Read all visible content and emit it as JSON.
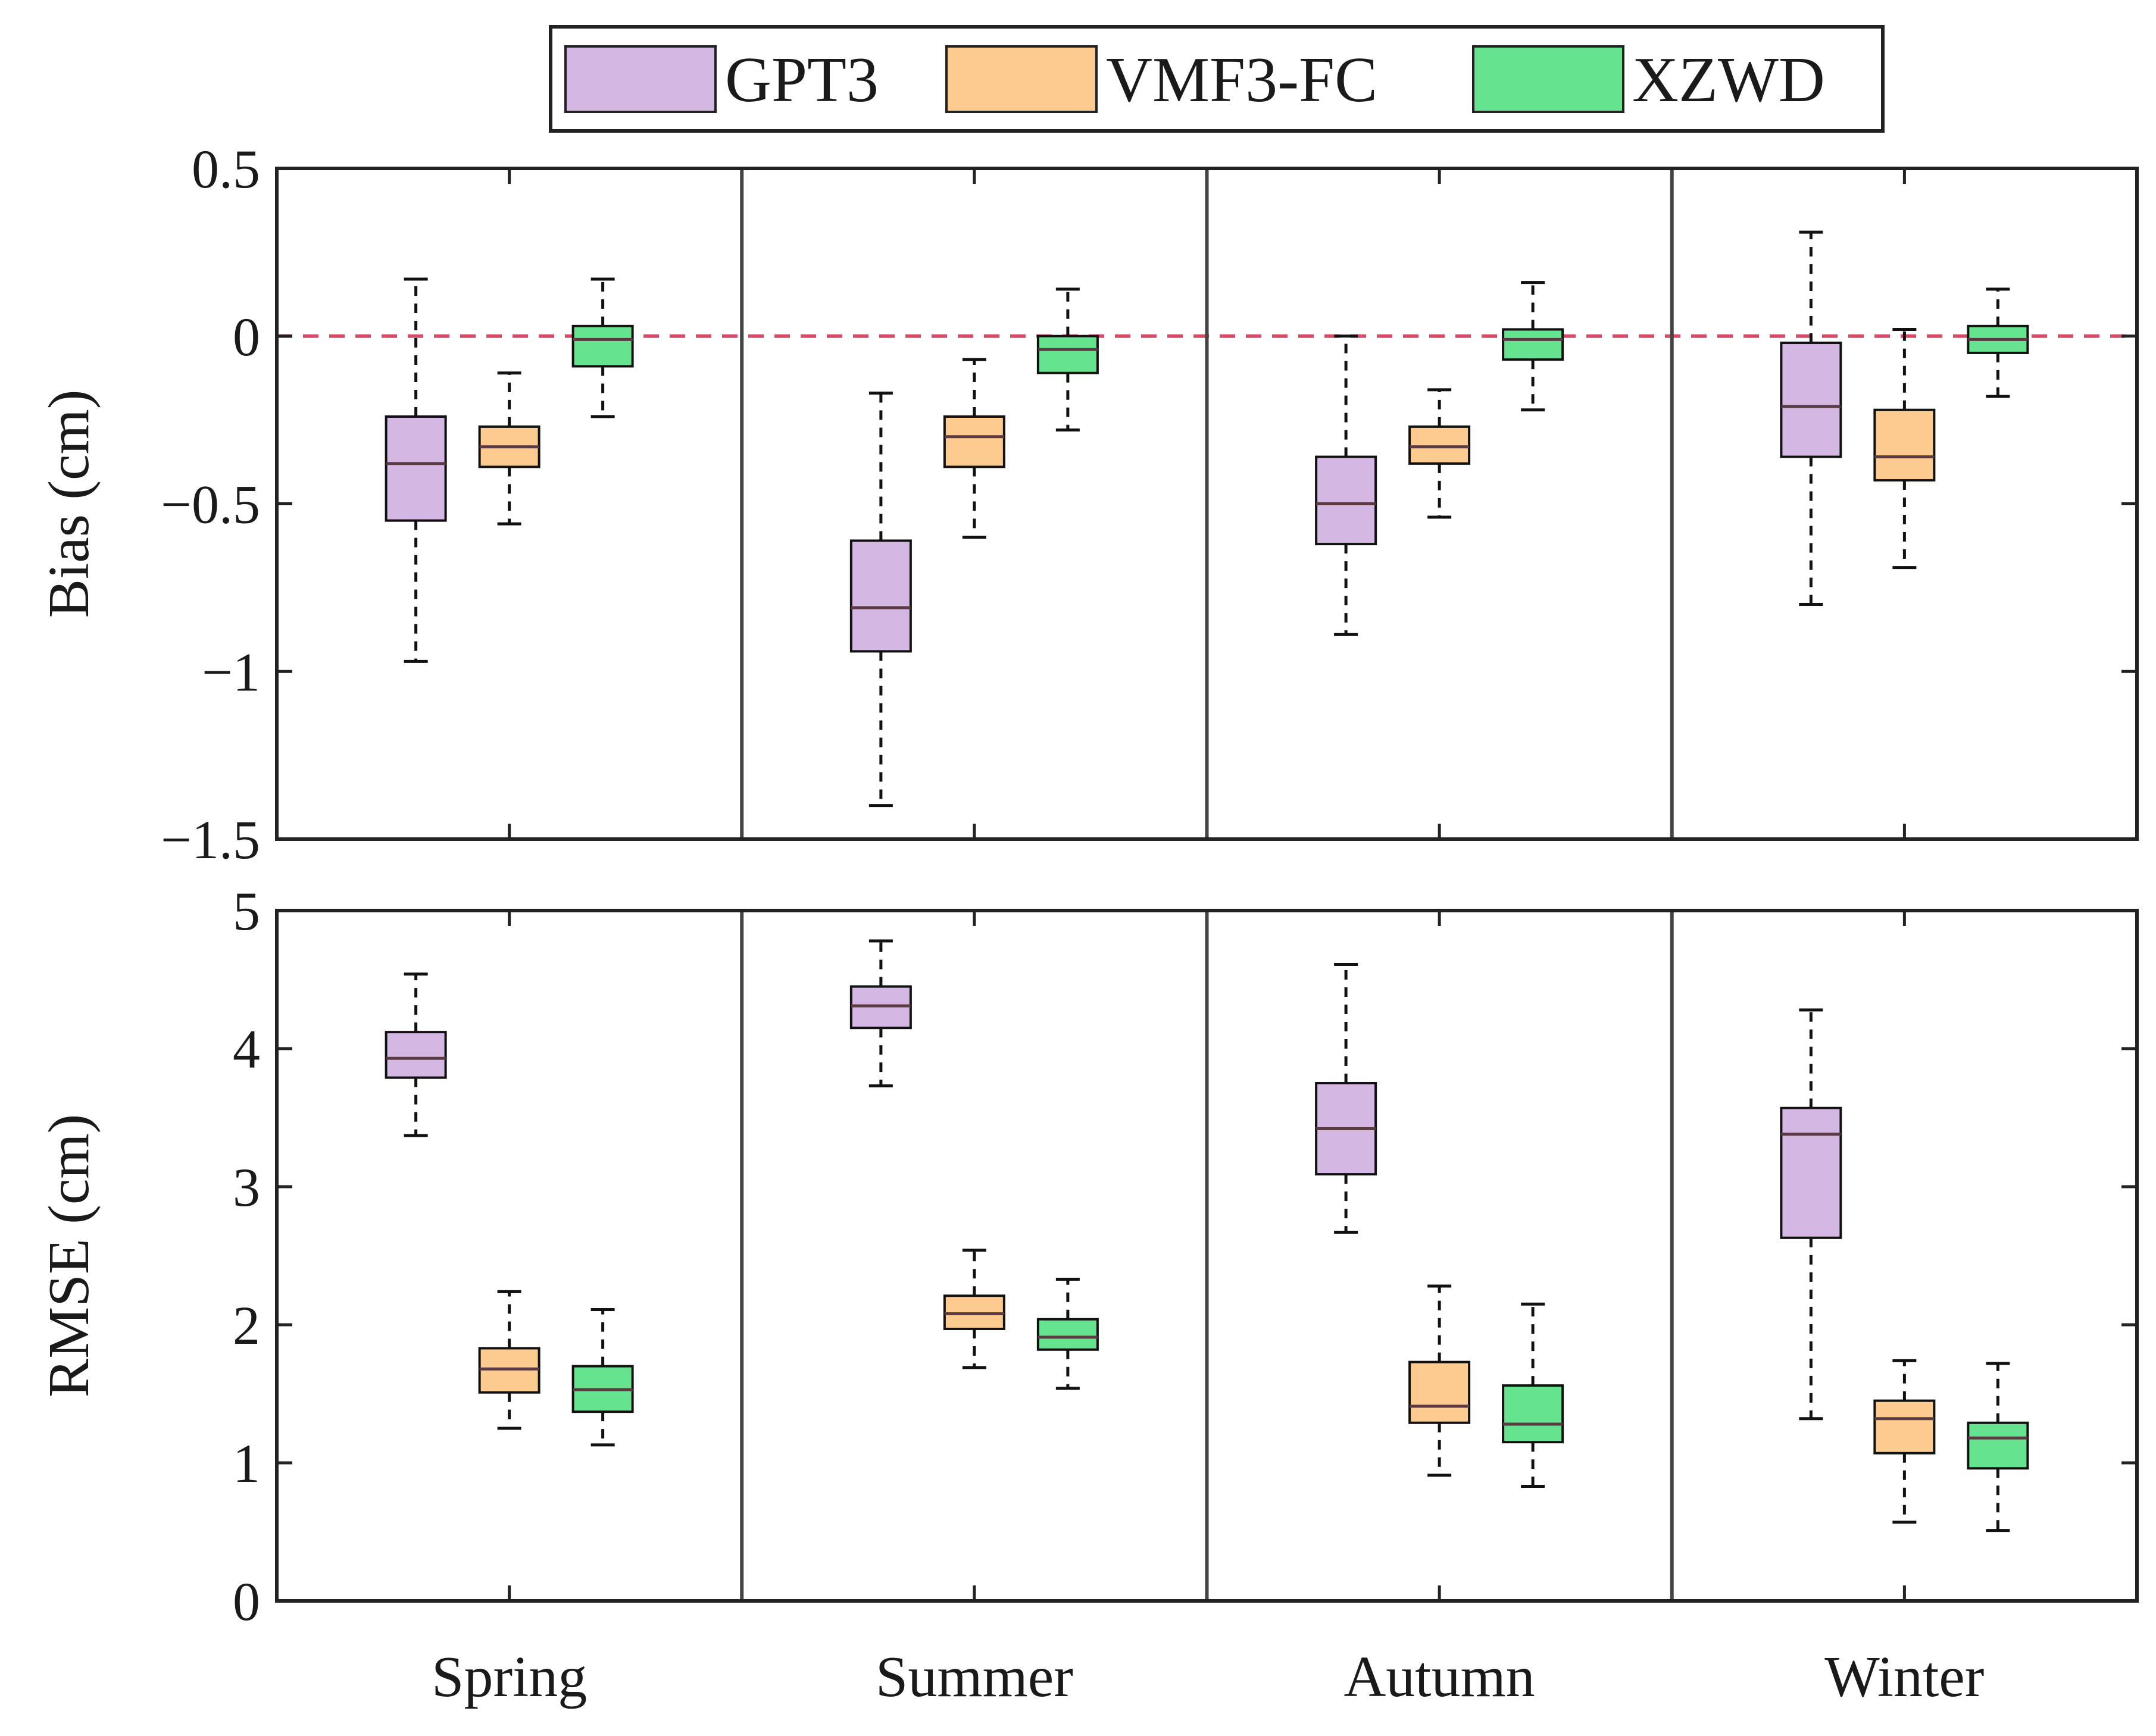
{
  "chart_data": {
    "type": "boxplot",
    "categories": [
      "Spring",
      "Summer",
      "Autumn",
      "Winter"
    ],
    "legend": [
      {
        "name": "GPT3",
        "color": "#d4b8e3"
      },
      {
        "name": "VMF3-FC",
        "color": "#fdcb8f"
      },
      {
        "name": "XZWD",
        "color": "#66e38f"
      }
    ],
    "legend_position": "top",
    "panels": [
      {
        "key": "bias",
        "ylabel": "Bias (cm)",
        "ylim": [
          -1.5,
          0.5
        ],
        "yticks": [
          0.5,
          0,
          -0.5,
          -1,
          -1.5
        ],
        "ytick_labels": [
          "0.5",
          "0",
          "−0.5",
          "−1",
          "−1.5"
        ],
        "reference_line": {
          "y": 0,
          "color": "#d4506a",
          "style": "dashed"
        },
        "series": [
          {
            "name": "GPT3",
            "boxes": [
              {
                "whisker_low": -0.97,
                "q1": -0.55,
                "median": -0.38,
                "q3": -0.24,
                "whisker_high": 0.17
              },
              {
                "whisker_low": -1.4,
                "q1": -0.94,
                "median": -0.81,
                "q3": -0.61,
                "whisker_high": -0.17
              },
              {
                "whisker_low": -0.89,
                "q1": -0.62,
                "median": -0.5,
                "q3": -0.36,
                "whisker_high": 0.0
              },
              {
                "whisker_low": -0.8,
                "q1": -0.36,
                "median": -0.21,
                "q3": -0.02,
                "whisker_high": 0.31
              }
            ]
          },
          {
            "name": "VMF3-FC",
            "boxes": [
              {
                "whisker_low": -0.56,
                "q1": -0.39,
                "median": -0.33,
                "q3": -0.27,
                "whisker_high": -0.11
              },
              {
                "whisker_low": -0.6,
                "q1": -0.39,
                "median": -0.3,
                "q3": -0.24,
                "whisker_high": -0.07
              },
              {
                "whisker_low": -0.54,
                "q1": -0.38,
                "median": -0.33,
                "q3": -0.27,
                "whisker_high": -0.16
              },
              {
                "whisker_low": -0.69,
                "q1": -0.43,
                "median": -0.36,
                "q3": -0.22,
                "whisker_high": 0.02
              }
            ]
          },
          {
            "name": "XZWD",
            "boxes": [
              {
                "whisker_low": -0.24,
                "q1": -0.09,
                "median": -0.01,
                "q3": 0.03,
                "whisker_high": 0.17
              },
              {
                "whisker_low": -0.28,
                "q1": -0.11,
                "median": -0.04,
                "q3": 0.0,
                "whisker_high": 0.14
              },
              {
                "whisker_low": -0.22,
                "q1": -0.07,
                "median": -0.01,
                "q3": 0.02,
                "whisker_high": 0.16
              },
              {
                "whisker_low": -0.18,
                "q1": -0.05,
                "median": -0.01,
                "q3": 0.03,
                "whisker_high": 0.14
              }
            ]
          }
        ]
      },
      {
        "key": "rmse",
        "ylabel": "RMSE (cm)",
        "ylim": [
          0,
          5
        ],
        "yticks": [
          5,
          4,
          3,
          2,
          1,
          0
        ],
        "ytick_labels": [
          "5",
          "4",
          "3",
          "2",
          "1",
          "0"
        ],
        "series": [
          {
            "name": "GPT3",
            "boxes": [
              {
                "whisker_low": 3.37,
                "q1": 3.79,
                "median": 3.93,
                "q3": 4.12,
                "whisker_high": 4.54
              },
              {
                "whisker_low": 3.73,
                "q1": 4.15,
                "median": 4.31,
                "q3": 4.45,
                "whisker_high": 4.78
              },
              {
                "whisker_low": 2.67,
                "q1": 3.09,
                "median": 3.42,
                "q3": 3.75,
                "whisker_high": 4.61
              },
              {
                "whisker_low": 1.32,
                "q1": 2.63,
                "median": 3.38,
                "q3": 3.57,
                "whisker_high": 4.28
              }
            ]
          },
          {
            "name": "VMF3-FC",
            "boxes": [
              {
                "whisker_low": 1.25,
                "q1": 1.51,
                "median": 1.68,
                "q3": 1.83,
                "whisker_high": 2.24
              },
              {
                "whisker_low": 1.69,
                "q1": 1.97,
                "median": 2.08,
                "q3": 2.21,
                "whisker_high": 2.54
              },
              {
                "whisker_low": 0.91,
                "q1": 1.29,
                "median": 1.41,
                "q3": 1.73,
                "whisker_high": 2.28
              },
              {
                "whisker_low": 0.57,
                "q1": 1.07,
                "median": 1.32,
                "q3": 1.45,
                "whisker_high": 1.74
              }
            ]
          },
          {
            "name": "XZWD",
            "boxes": [
              {
                "whisker_low": 1.13,
                "q1": 1.37,
                "median": 1.53,
                "q3": 1.7,
                "whisker_high": 2.11
              },
              {
                "whisker_low": 1.54,
                "q1": 1.82,
                "median": 1.91,
                "q3": 2.04,
                "whisker_high": 2.33
              },
              {
                "whisker_low": 0.83,
                "q1": 1.15,
                "median": 1.28,
                "q3": 1.56,
                "whisker_high": 2.15
              },
              {
                "whisker_low": 0.51,
                "q1": 0.96,
                "median": 1.18,
                "q3": 1.29,
                "whisker_high": 1.72
              }
            ]
          }
        ]
      }
    ]
  }
}
